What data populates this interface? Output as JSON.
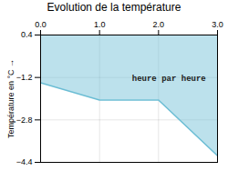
{
  "chart_data": {
    "type": "area",
    "title": "Evolution de la température",
    "ylabel": "Température en °C",
    "x": [
      0,
      1,
      2,
      3
    ],
    "values": [
      -1.4,
      -2.05,
      -2.05,
      -4.15
    ],
    "color": "#6bbdd4",
    "xlim": [
      0,
      3
    ],
    "xticks": [
      0,
      1,
      2,
      3
    ],
    "ylim": [
      -4.4,
      0.4
    ],
    "yticks": [
      0.4,
      -1.2,
      -2.8,
      -4.4
    ],
    "grid": true,
    "annotations": [
      {
        "text": "heure par heure",
        "x": 1.55,
        "y": -1.1
      }
    ]
  }
}
